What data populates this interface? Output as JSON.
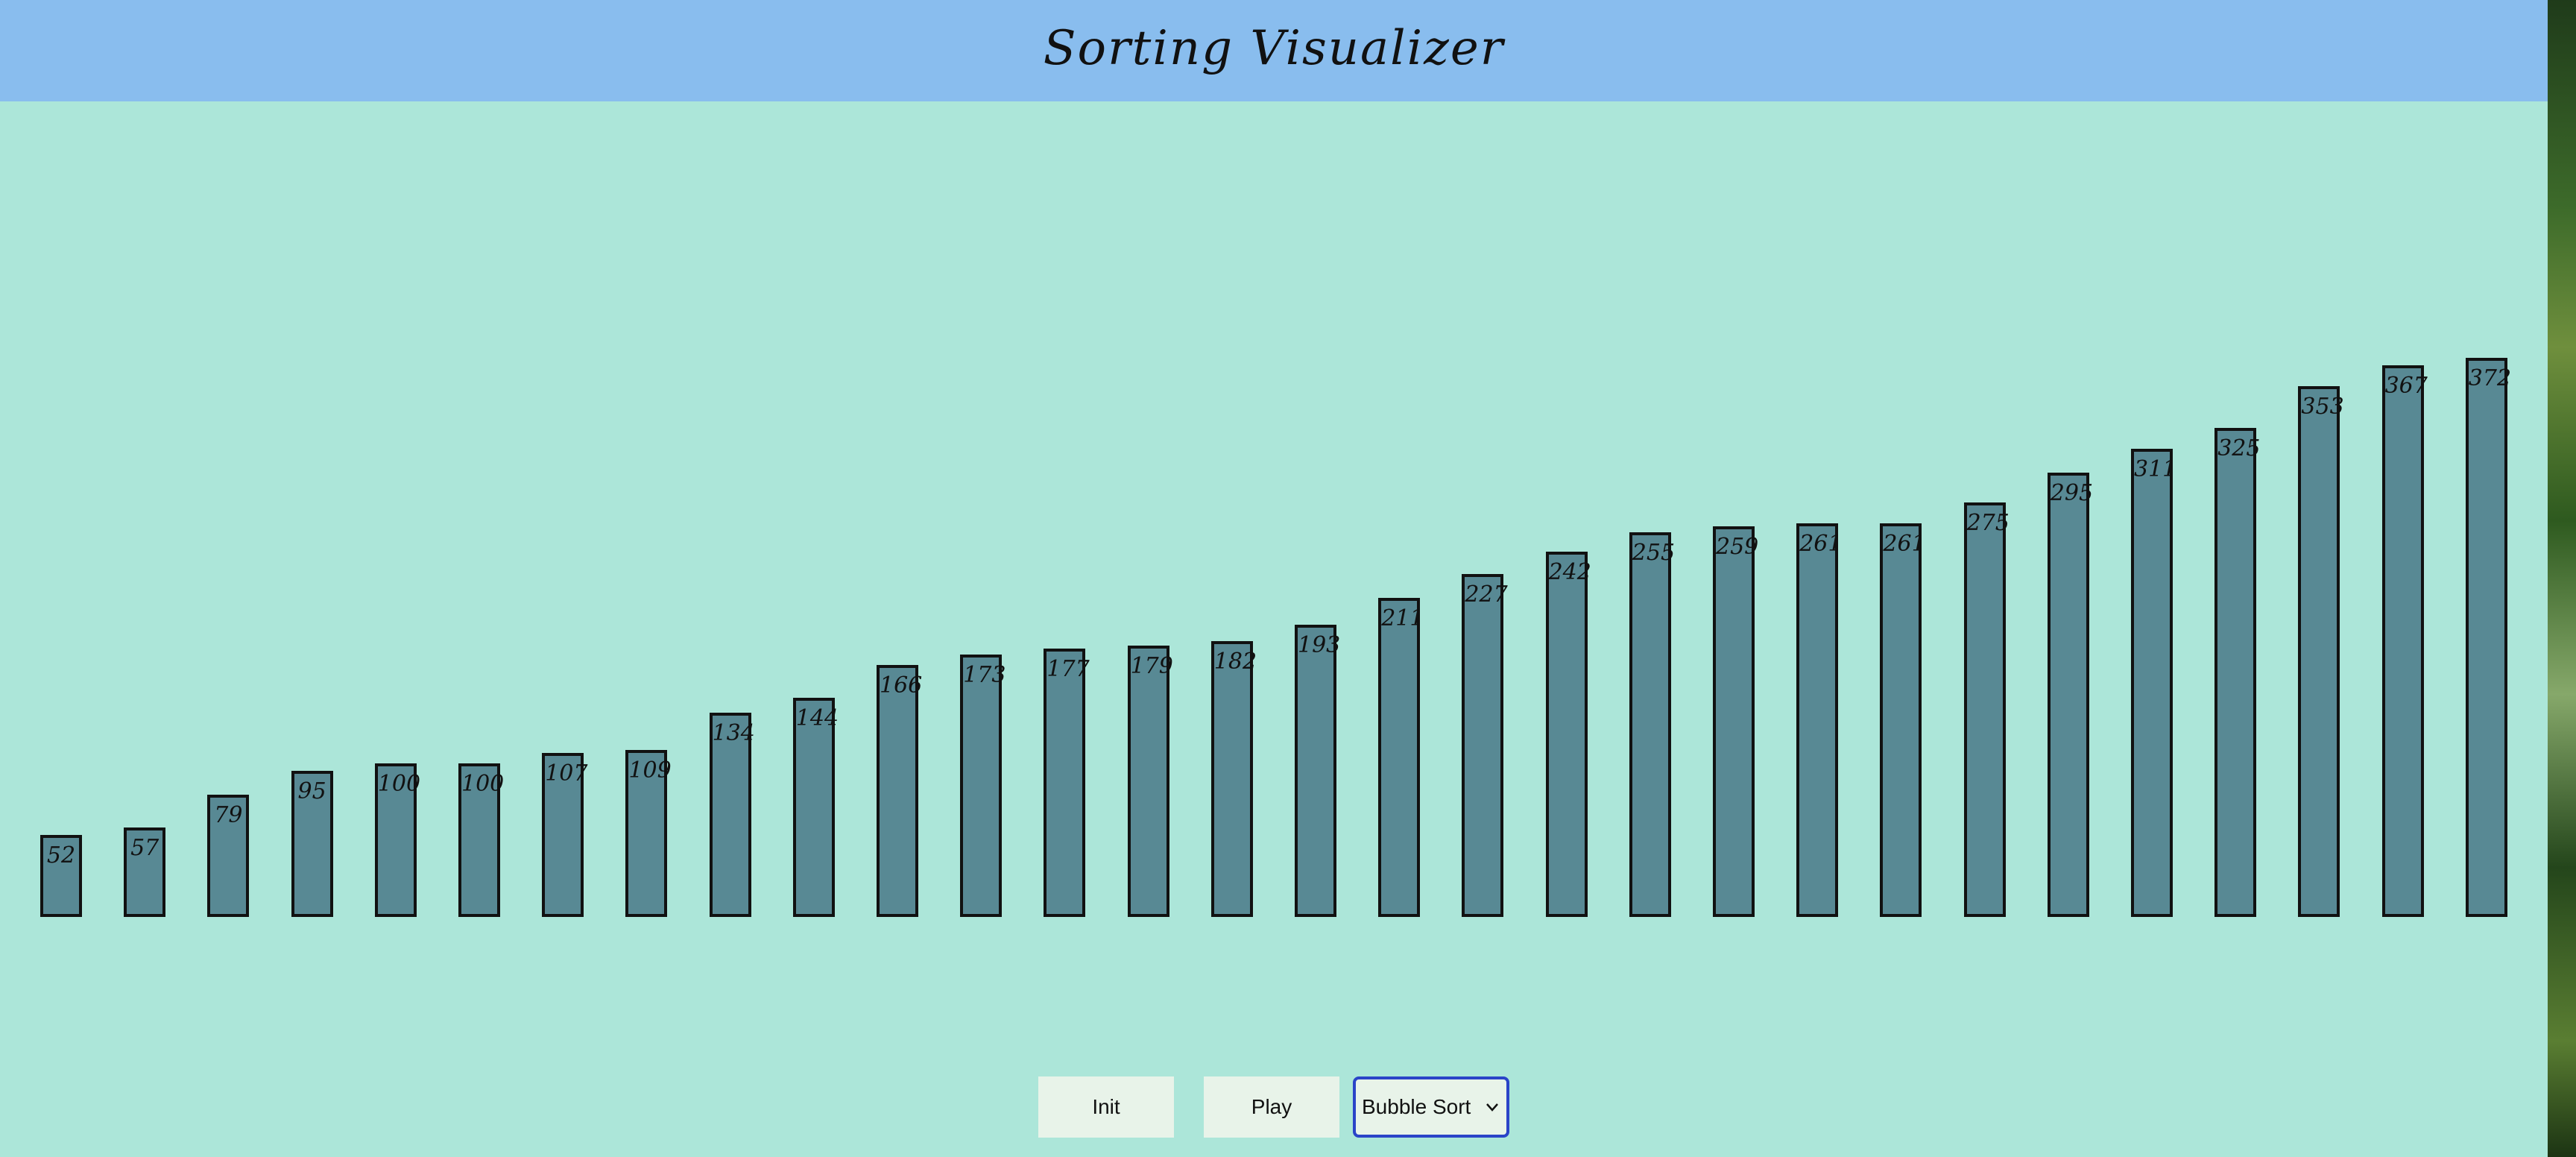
{
  "header": {
    "title": "Sorting Visualizer"
  },
  "array": {
    "values": [
      52,
      57,
      79,
      95,
      100,
      100,
      107,
      109,
      134,
      144,
      166,
      173,
      177,
      179,
      182,
      193,
      211,
      227,
      242,
      255,
      259,
      261,
      261,
      275,
      295,
      311,
      325,
      353,
      367,
      372
    ]
  },
  "controls": {
    "init_label": "Init",
    "play_label": "Play",
    "algorithm_selected": "Bubble Sort"
  },
  "colors": {
    "background": "#ace6d9",
    "header": "#89bdee",
    "bar_fill": "#588994",
    "bar_border": "#111111",
    "select_border": "#2a44c8"
  }
}
